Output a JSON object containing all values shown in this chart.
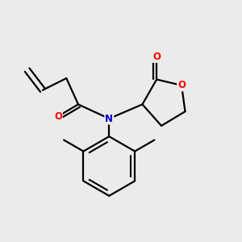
{
  "background_color": "#ebebeb",
  "atom_colors": {
    "O": "#ff0000",
    "N": "#0000cc",
    "C": "#000000"
  },
  "bond_color": "#000000",
  "bond_width": 1.6,
  "figsize": [
    3.0,
    3.0
  ],
  "dpi": 100
}
